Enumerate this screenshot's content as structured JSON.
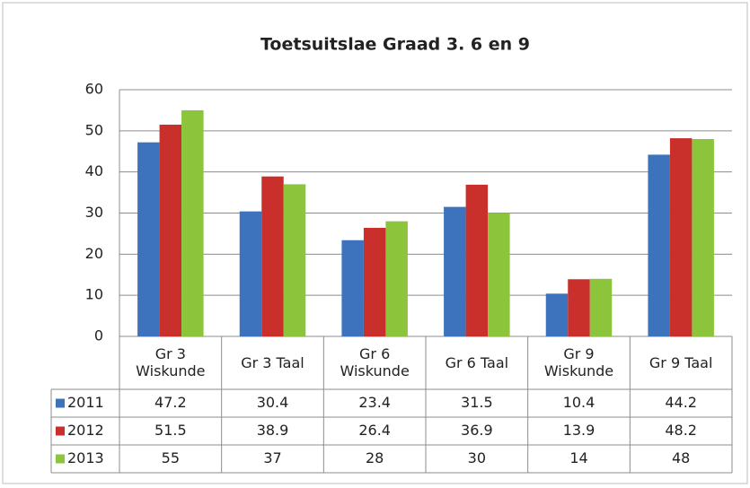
{
  "chart_data": {
    "type": "bar",
    "title": "Toetsuitslae Graad 3. 6 en 9",
    "categories": [
      "Gr 3 Wiskunde",
      "Gr 3 Taal",
      "Gr 6 Wiskunde",
      "Gr 6 Taal",
      "Gr 9 Wiskunde",
      "Gr 9 Taal"
    ],
    "series": [
      {
        "name": "2011",
        "color": "#3d73bd",
        "values": [
          47.2,
          30.4,
          23.4,
          31.5,
          10.4,
          44.2
        ]
      },
      {
        "name": "2012",
        "color": "#c9302c",
        "values": [
          51.5,
          38.9,
          26.4,
          36.9,
          13.9,
          48.2
        ]
      },
      {
        "name": "2013",
        "color": "#8cc43c",
        "values": [
          55,
          37,
          28,
          30,
          14,
          48
        ]
      }
    ],
    "ylim": [
      0,
      60
    ],
    "yticks": [
      0,
      10,
      20,
      30,
      40,
      50,
      60
    ],
    "grid": true,
    "data_table": true
  }
}
